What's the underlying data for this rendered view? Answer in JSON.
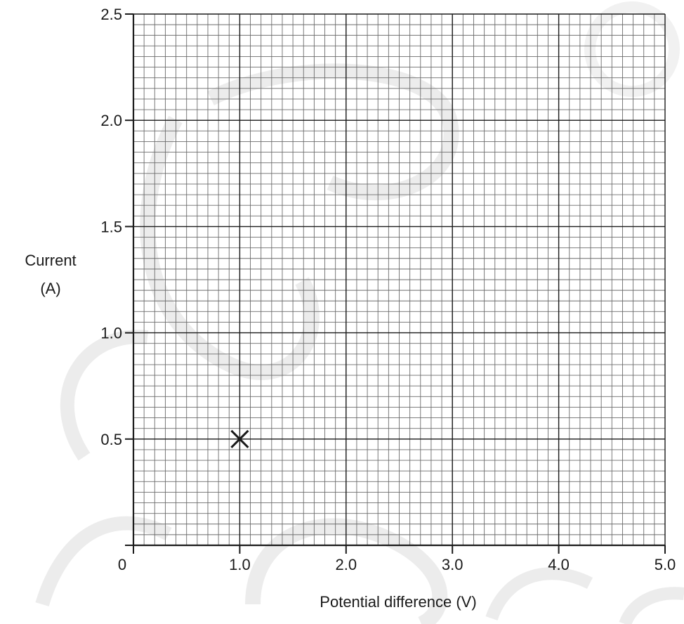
{
  "chart_data": {
    "type": "scatter",
    "title": "",
    "xlabel": "Potential difference (V)",
    "ylabel_lines": [
      "Current",
      "(A)"
    ],
    "xlim": [
      0,
      5.0
    ],
    "ylim": [
      0,
      2.5
    ],
    "x_ticks": [
      0,
      1.0,
      2.0,
      3.0,
      4.0,
      5.0
    ],
    "x_tick_labels": [
      "0",
      "1.0",
      "2.0",
      "3.0",
      "4.0",
      "5.0"
    ],
    "y_ticks": [
      0.5,
      1.0,
      1.5,
      2.0,
      2.5
    ],
    "y_tick_labels": [
      "0.5",
      "1.0",
      "1.5",
      "2.0",
      "2.5"
    ],
    "grid": true,
    "grid_minor_per_major": 10,
    "points": [
      {
        "x": 1.0,
        "y": 0.5,
        "marker": "cross"
      }
    ],
    "colors": {
      "grid_minor": "#6b6b6b",
      "grid_major": "#1a1a1a",
      "axis": "#1a1a1a",
      "marker": "#1a1a1a",
      "watermark": "#ececec"
    }
  }
}
